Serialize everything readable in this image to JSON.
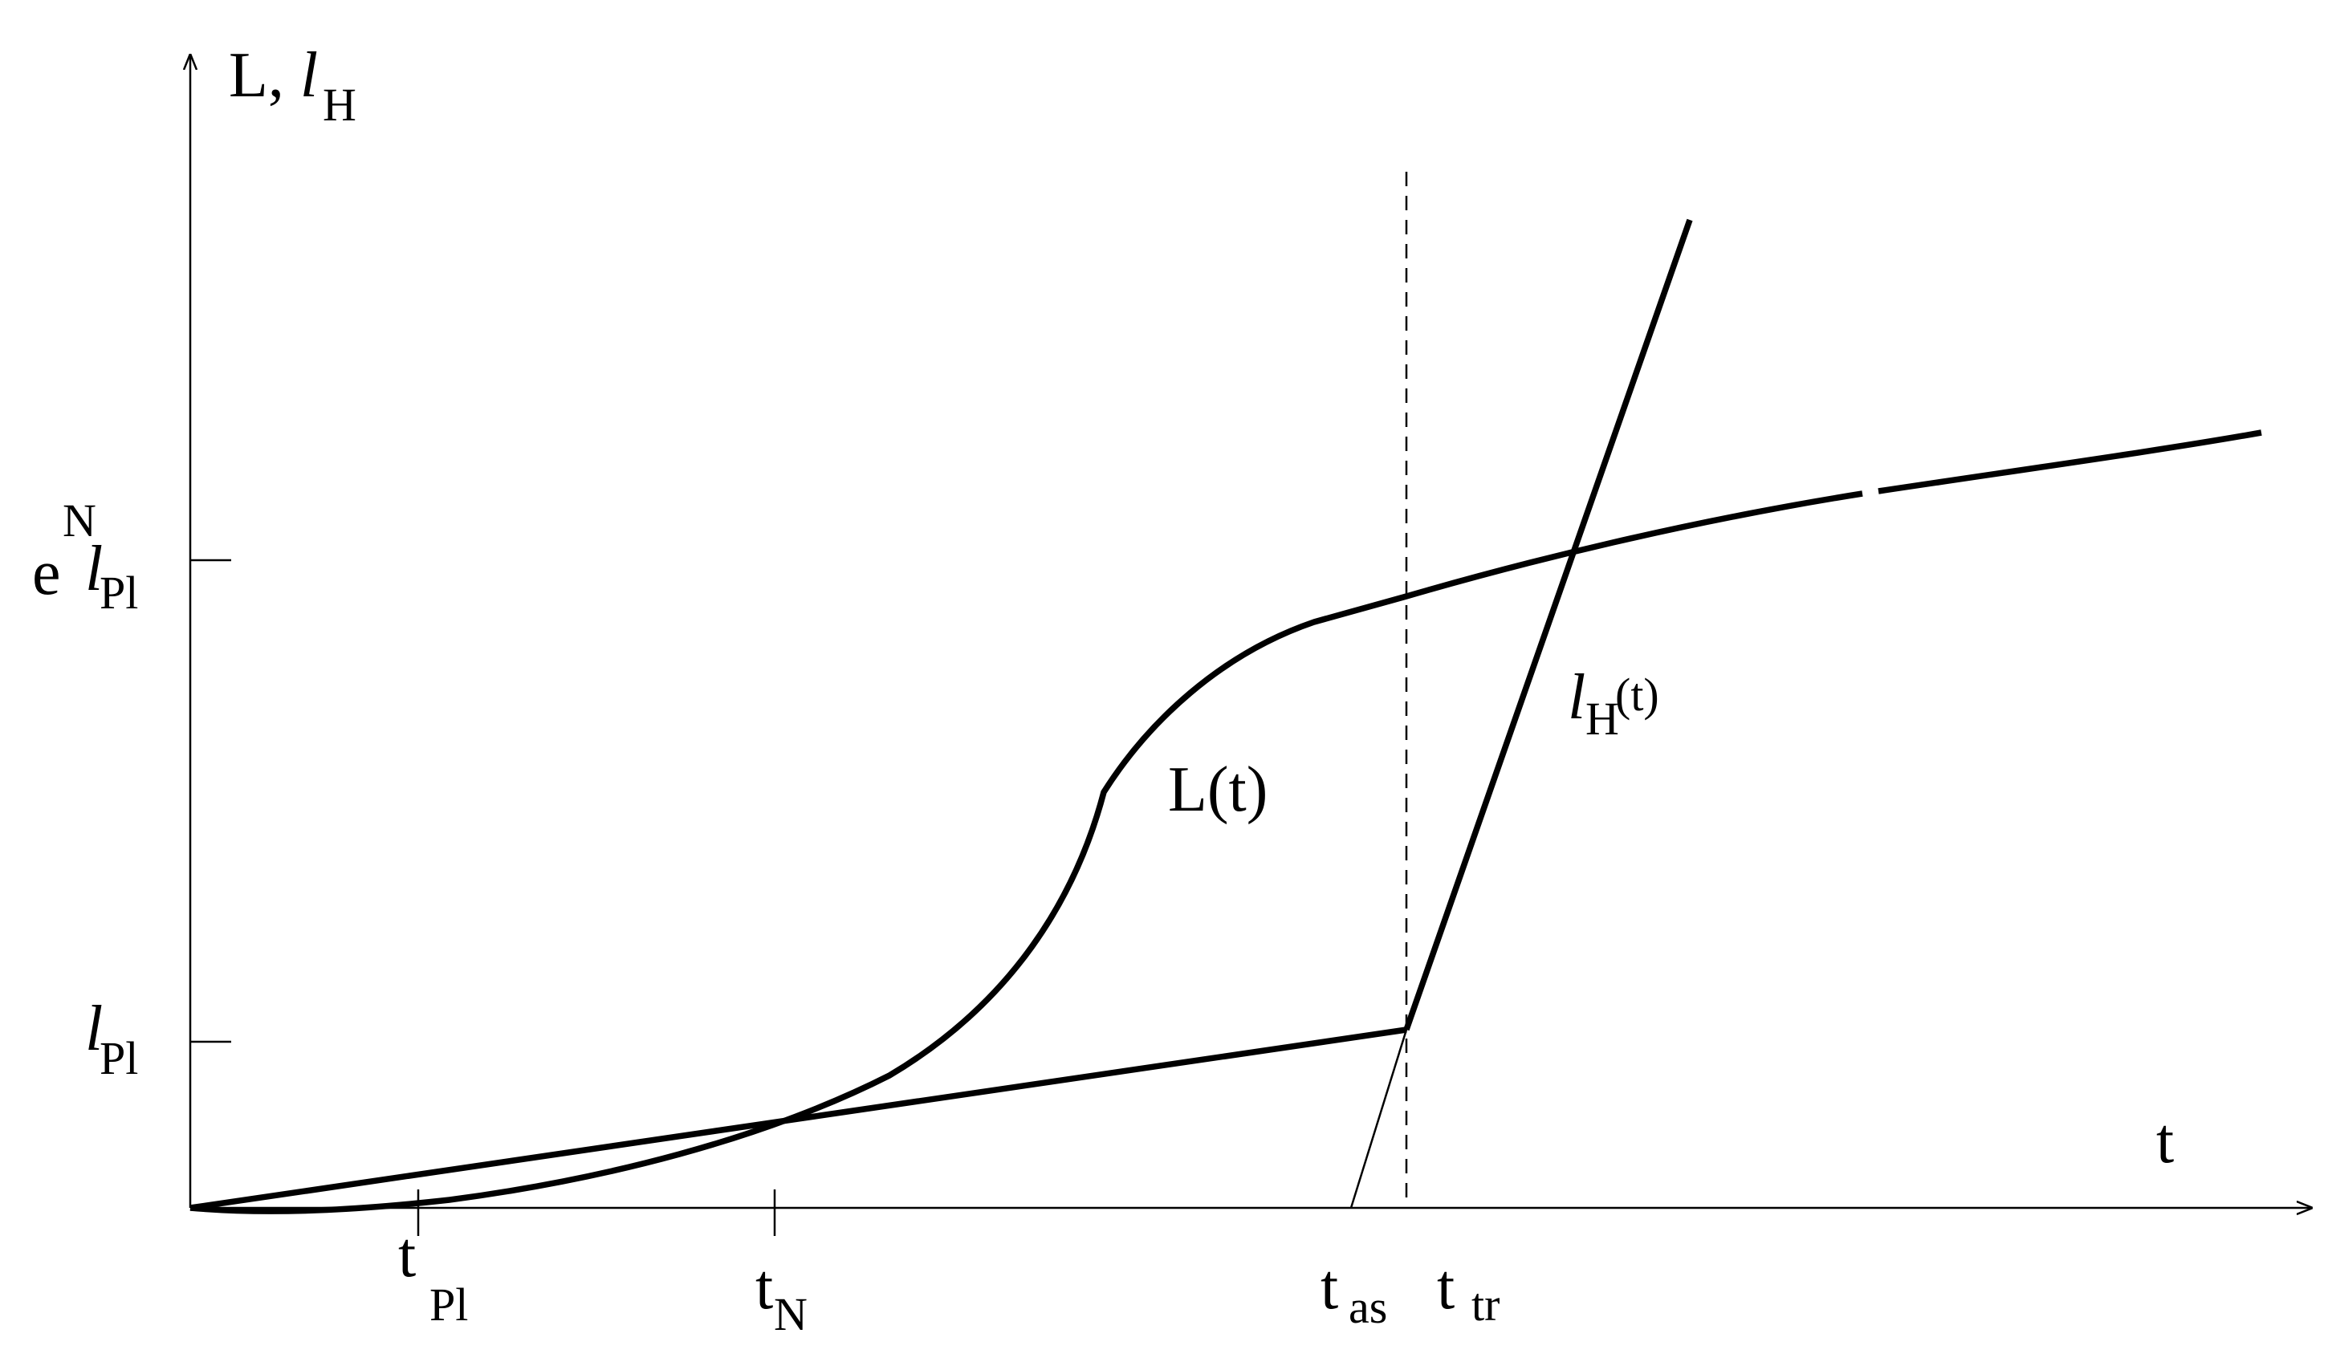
{
  "diagram": {
    "y_axis_label": {
      "main": "L, ",
      "italic": "l",
      "sub": "H"
    },
    "x_axis_label": "t",
    "y_ticks": {
      "top": {
        "prefix": "e",
        "sup": "N",
        "italic": "l",
        "sub": "Pl"
      },
      "bottom": {
        "italic": "l",
        "sub": "Pl"
      }
    },
    "x_ticks": {
      "t_pl": {
        "main": "t",
        "sub": "Pl"
      },
      "t_n": {
        "main": "t",
        "sub": "N"
      },
      "t_as": {
        "main": "t",
        "sub": "as"
      },
      "t_tr": {
        "main": "t",
        "sub": "tr"
      }
    },
    "curve_labels": {
      "L_t": "L(t)",
      "lH_t": {
        "italic": "l",
        "sub": "H",
        "sup": "(t)"
      }
    }
  }
}
